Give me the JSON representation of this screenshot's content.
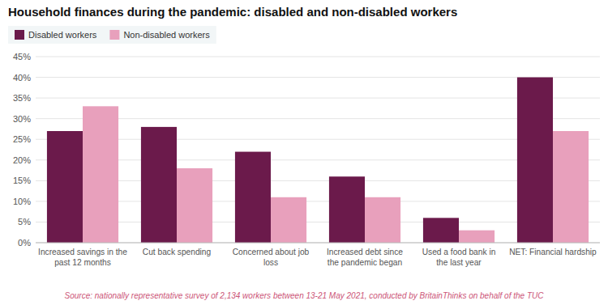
{
  "chart_data": {
    "type": "bar",
    "title": "Household finances during the pandemic: disabled and non-disabled workers",
    "categories": [
      "Increased savings in the\npast 12 months",
      "Cut back spending",
      "Concerned about job\nloss",
      "Increased debt since\nthe pandemic began",
      "Used a food bank in\nthe last year",
      "NET: Financial hardship"
    ],
    "series": [
      {
        "name": "Disabled workers",
        "color": "#6b1a4b",
        "values": [
          27,
          28,
          22,
          16,
          6,
          40
        ]
      },
      {
        "name": "Non-disabled workers",
        "color": "#e8a0bc",
        "values": [
          33,
          18,
          11,
          11,
          3,
          27
        ]
      }
    ],
    "ylim": [
      0,
      45
    ],
    "yticks": [
      {
        "value": 0,
        "label": "0%"
      },
      {
        "value": 5,
        "label": "5%"
      },
      {
        "value": 10,
        "label": "10%"
      },
      {
        "value": 15,
        "label": "15%"
      },
      {
        "value": 20,
        "label": "20%"
      },
      {
        "value": 25,
        "label": "25%"
      },
      {
        "value": 30,
        "label": "30%"
      },
      {
        "value": 35,
        "label": "35%"
      },
      {
        "value": 40,
        "label": "40%"
      },
      {
        "value": 45,
        "label": "45%"
      }
    ],
    "grid": true,
    "legend": "top-left",
    "annotations": [
      "Source: nationally representative survey of 2,134 workers between 13-21 May 2021, conducted by BritainThinks on behalf of the TUC"
    ]
  }
}
